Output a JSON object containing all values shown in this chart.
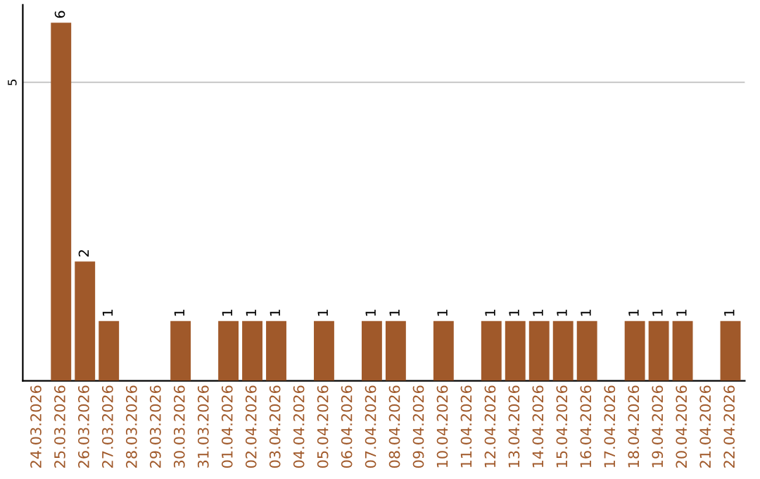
{
  "chart_data": {
    "type": "bar",
    "categories": [
      "24.03.2026",
      "25.03.2026",
      "26.03.2026",
      "27.03.2026",
      "28.03.2026",
      "29.03.2026",
      "30.03.2026",
      "31.03.2026",
      "01.04.2026",
      "02.04.2026",
      "03.04.2026",
      "04.04.2026",
      "05.04.2026",
      "06.04.2026",
      "07.04.2026",
      "08.04.2026",
      "09.04.2026",
      "10.04.2026",
      "11.04.2026",
      "12.04.2026",
      "13.04.2026",
      "14.04.2026",
      "15.04.2026",
      "16.04.2026",
      "17.04.2026",
      "18.04.2026",
      "19.04.2026",
      "20.04.2026",
      "21.04.2026",
      "22.04.2026"
    ],
    "values": [
      0,
      6,
      2,
      1,
      0,
      0,
      1,
      0,
      1,
      1,
      1,
      0,
      1,
      0,
      1,
      1,
      0,
      1,
      0,
      1,
      1,
      1,
      1,
      1,
      0,
      1,
      1,
      1,
      0,
      1
    ],
    "value_labels": [
      null,
      "6",
      "2",
      "1",
      null,
      null,
      "1",
      null,
      "1",
      "1",
      "1",
      null,
      "1",
      null,
      "1",
      "1",
      null,
      "1",
      null,
      "1",
      "1",
      "1",
      "1",
      "1",
      null,
      "1",
      "1",
      "1",
      null,
      "1"
    ],
    "color": "#a0592a",
    "ylim": [
      0,
      6.3
    ],
    "yticks": [
      5
    ],
    "grid": "y",
    "legend": false
  }
}
